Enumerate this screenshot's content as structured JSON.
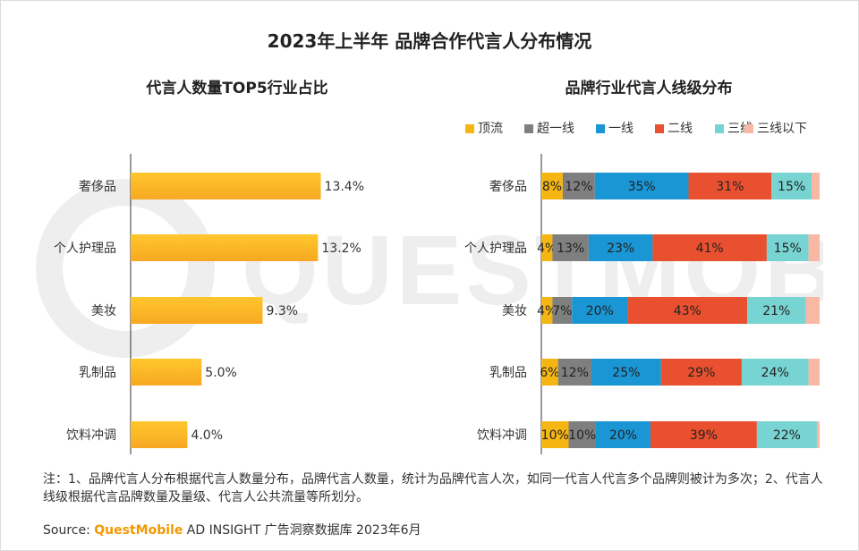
{
  "title": "2023年上半年 品牌合作代言人分布情况",
  "colors": {
    "bar_left_top": "#ffc72c",
    "bar_left_bottom": "#f7a823",
    "watermark": "#eeeeee"
  },
  "chart_data": [
    {
      "type": "bar",
      "orientation": "horizontal",
      "title": "代言人数量TOP5行业占比",
      "categories": [
        "奢侈品",
        "个人护理品",
        "美妆",
        "乳制品",
        "饮料冲调"
      ],
      "values": [
        13.4,
        13.2,
        9.3,
        5.0,
        4.0
      ],
      "value_labels": [
        "13.4%",
        "13.2%",
        "9.3%",
        "5.0%",
        "4.0%"
      ],
      "unit": "%",
      "xlim": [
        0,
        14.5
      ]
    },
    {
      "type": "bar",
      "orientation": "horizontal",
      "stacked": true,
      "title": "品牌行业代言人线级分布",
      "categories": [
        "奢侈品",
        "个人护理品",
        "美妆",
        "乳制品",
        "饮料冲调"
      ],
      "legend_position": "top-right",
      "series": [
        {
          "name": "顶流",
          "color": "#f5b614",
          "values": [
            8,
            4,
            4,
            6,
            10
          ]
        },
        {
          "name": "超一线",
          "color": "#7f7f7f",
          "values": [
            12,
            13,
            7,
            12,
            10
          ]
        },
        {
          "name": "一线",
          "color": "#1a96d5",
          "values": [
            35,
            23,
            20,
            25,
            20
          ]
        },
        {
          "name": "二线",
          "color": "#e9502f",
          "values": [
            31,
            41,
            43,
            29,
            39
          ]
        },
        {
          "name": "三线",
          "color": "#78d4d2",
          "values": [
            15,
            15,
            21,
            24,
            22
          ]
        },
        {
          "name": "三线以下",
          "color": "#f8b8a4",
          "values": [
            3,
            4,
            5,
            4,
            1
          ]
        }
      ],
      "value_labels": [
        [
          "8%",
          "12%",
          "35%",
          "31%",
          "15%",
          ""
        ],
        [
          "4%",
          "13%",
          "23%",
          "41%",
          "15%",
          ""
        ],
        [
          "4%",
          "7%",
          "20%",
          "43%",
          "21%",
          ""
        ],
        [
          "6%",
          "12%",
          "25%",
          "29%",
          "24%",
          ""
        ],
        [
          "10%",
          "10%",
          "20%",
          "39%",
          "22%",
          ""
        ]
      ],
      "xlim": [
        0,
        100
      ]
    }
  ],
  "note": "注：1、品牌代言人分布根据代言人数量分布，品牌代言人数量，统计为品牌代言人次，如同一代言人代言多个品牌则被计为多次；2、代言人线级根据代言品牌数量及量级、代言人公共流量等所划分。",
  "source": {
    "prefix": "Source:",
    "brand": "QuestMobile",
    "suffix": "AD INSIGHT 广告洞察数据库 2023年6月"
  },
  "watermark_text": "QUESTMOBILE"
}
